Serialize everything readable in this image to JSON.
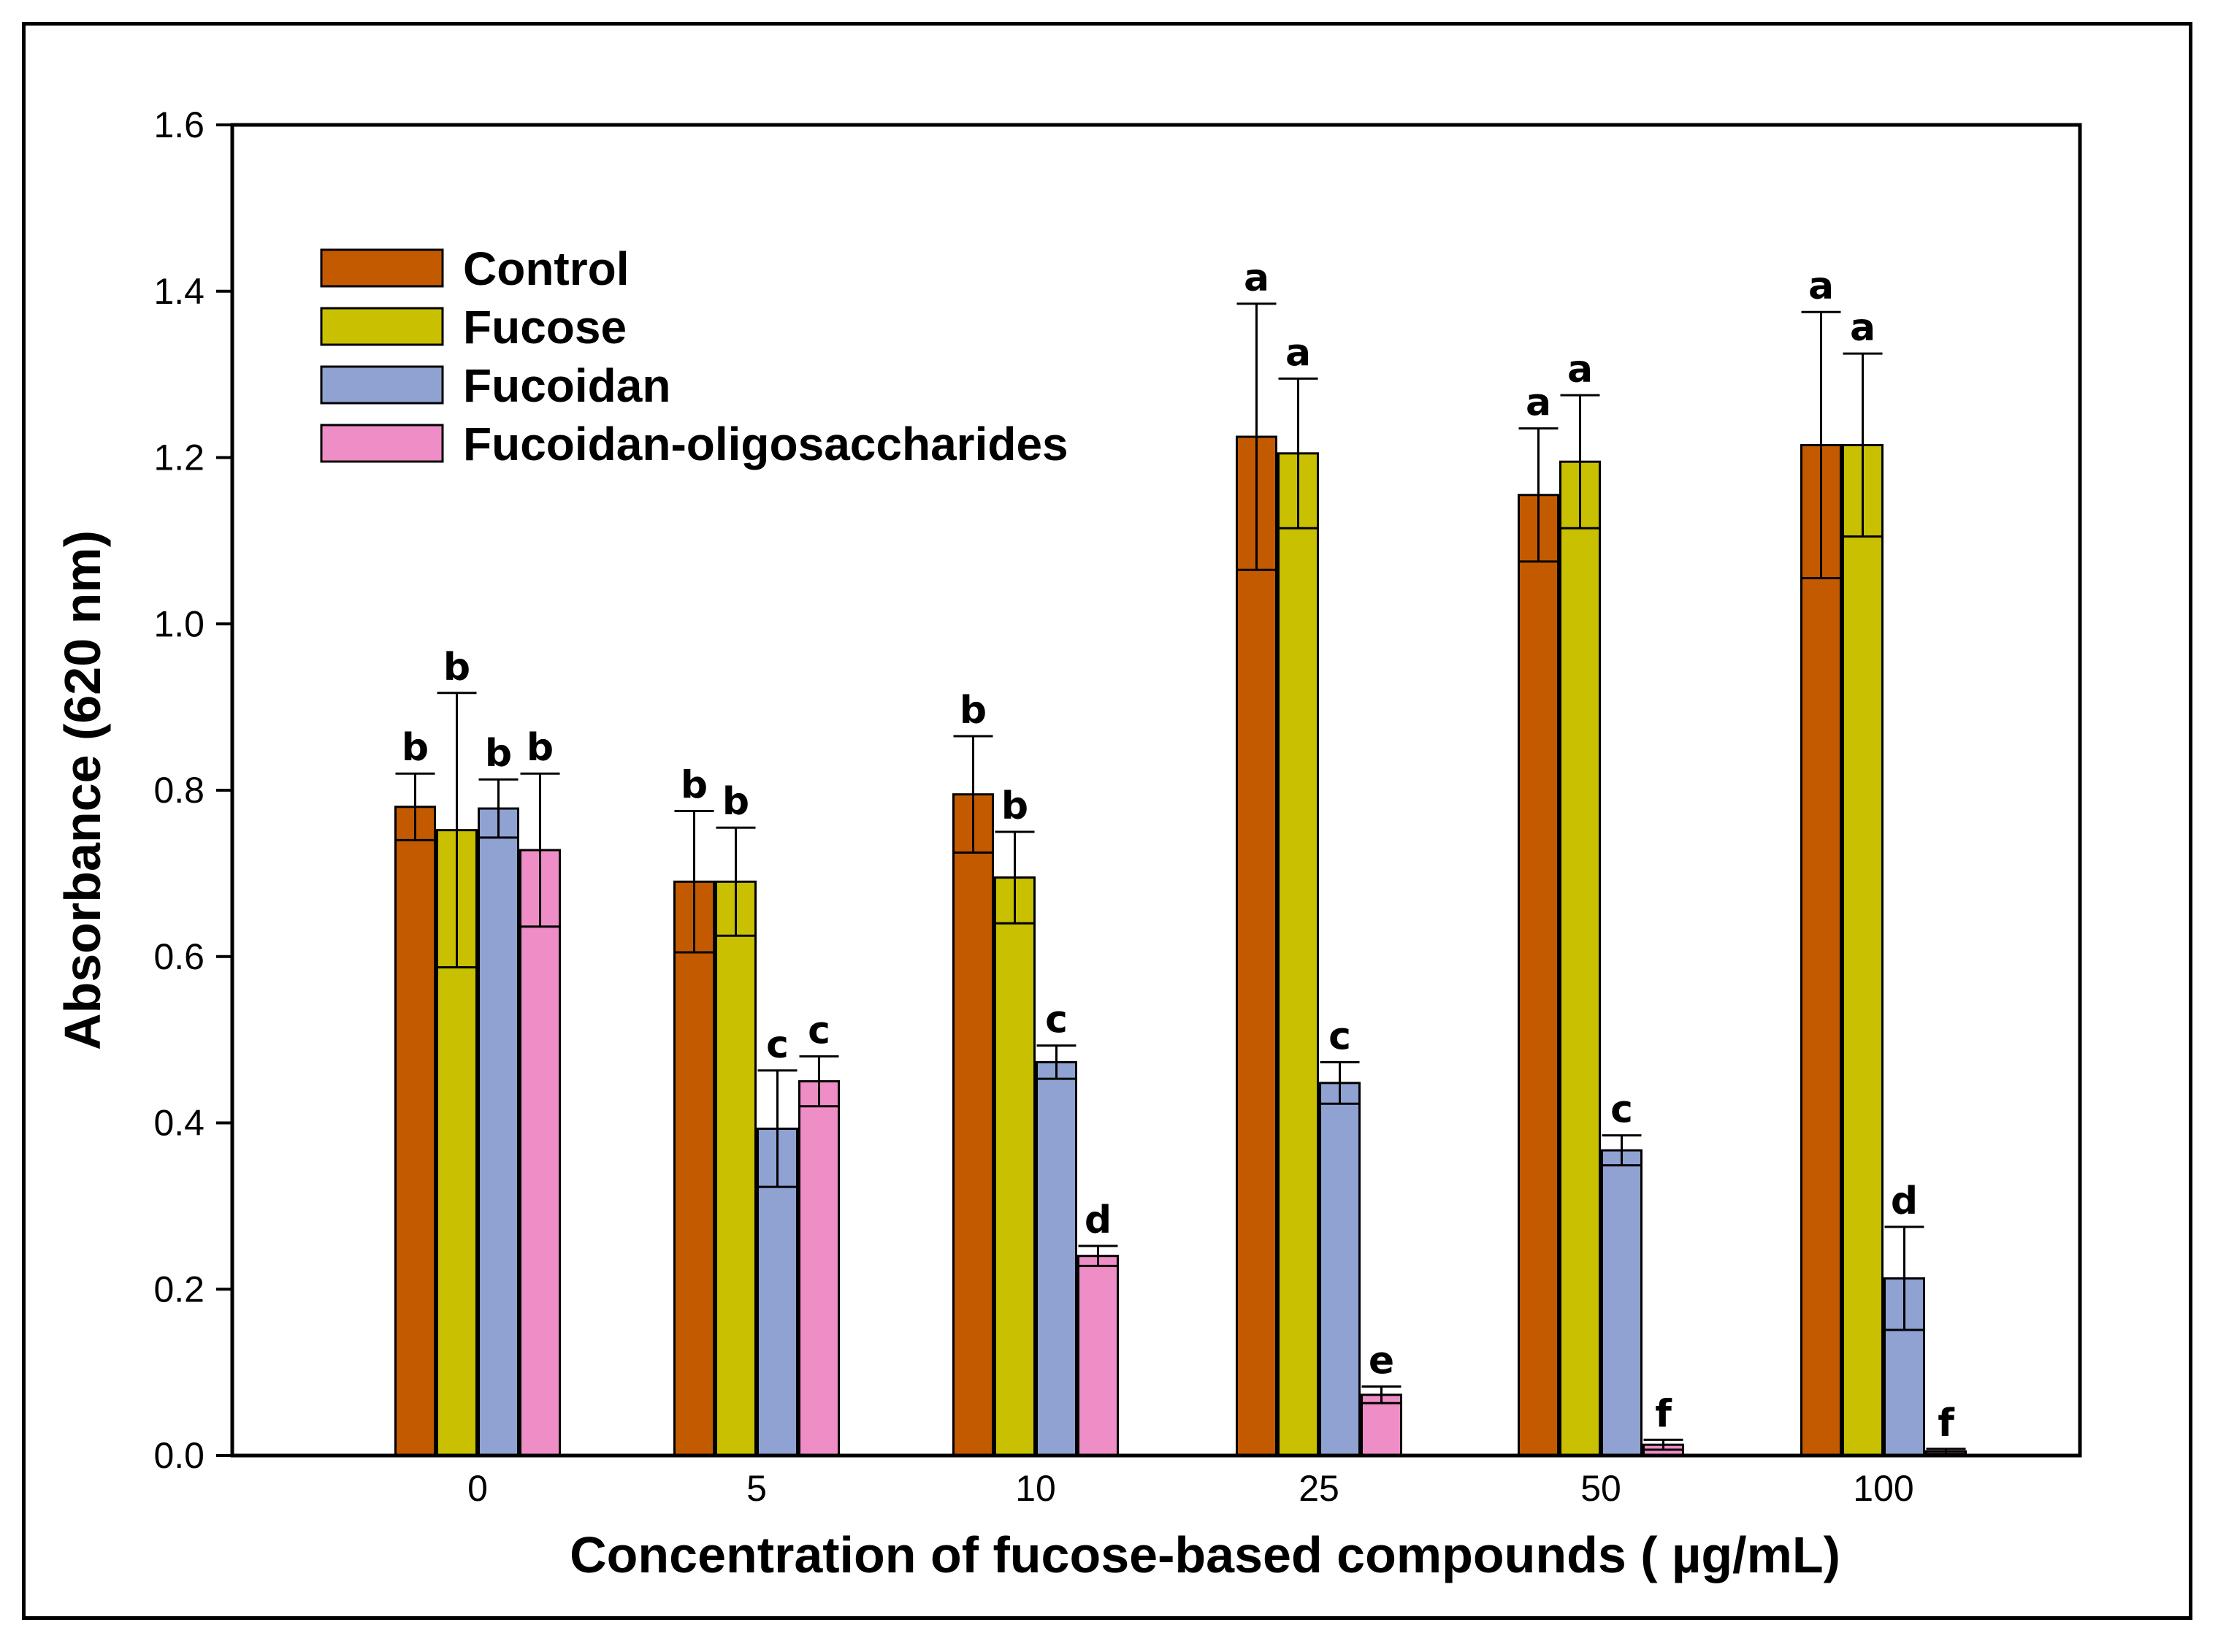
{
  "chart_data": {
    "type": "bar",
    "title": "",
    "xlabel": "Concentration of fucose-based compounds ( µg/mL)",
    "ylabel": "Absorbance (620 nm)",
    "ylim": [
      0,
      1.6
    ],
    "yticks": [
      "0.0",
      "0.2",
      "0.4",
      "0.6",
      "0.8",
      "1.0",
      "1.2",
      "1.4",
      "1.6"
    ],
    "categories": [
      "0",
      "5",
      "10",
      "25",
      "50",
      "100"
    ],
    "legend_position": "top-left",
    "series": [
      {
        "name": "Control",
        "color": "#C45A00",
        "values": [
          0.78,
          0.69,
          0.795,
          1.225,
          1.155,
          1.215
        ],
        "errors": [
          0.04,
          0.085,
          0.07,
          0.16,
          0.08,
          0.16
        ],
        "labels": [
          "b",
          "b",
          "b",
          "a",
          "a",
          "a"
        ]
      },
      {
        "name": "Fucose",
        "color": "#C8C000",
        "values": [
          0.752,
          0.69,
          0.695,
          1.205,
          1.195,
          1.215
        ],
        "errors": [
          0.165,
          0.065,
          0.055,
          0.09,
          0.08,
          0.11
        ],
        "labels": [
          "b",
          "b",
          "b",
          "a",
          "a",
          "a"
        ]
      },
      {
        "name": "Fucoidan",
        "color": "#8FA2D2",
        "values": [
          0.778,
          0.393,
          0.473,
          0.448,
          0.367,
          0.213
        ],
        "errors": [
          0.035,
          0.07,
          0.02,
          0.025,
          0.018,
          0.062
        ],
        "labels": [
          "b",
          "c",
          "c",
          "c",
          "c",
          "d"
        ]
      },
      {
        "name": "Fucoidan-oligosaccharides",
        "color": "#EE8DC6",
        "values": [
          0.728,
          0.45,
          0.24,
          0.073,
          0.013,
          0.005
        ],
        "errors": [
          0.092,
          0.03,
          0.012,
          0.01,
          0.006,
          0.003
        ],
        "labels": [
          "b",
          "c",
          "d",
          "e",
          "f",
          "f"
        ]
      }
    ]
  }
}
